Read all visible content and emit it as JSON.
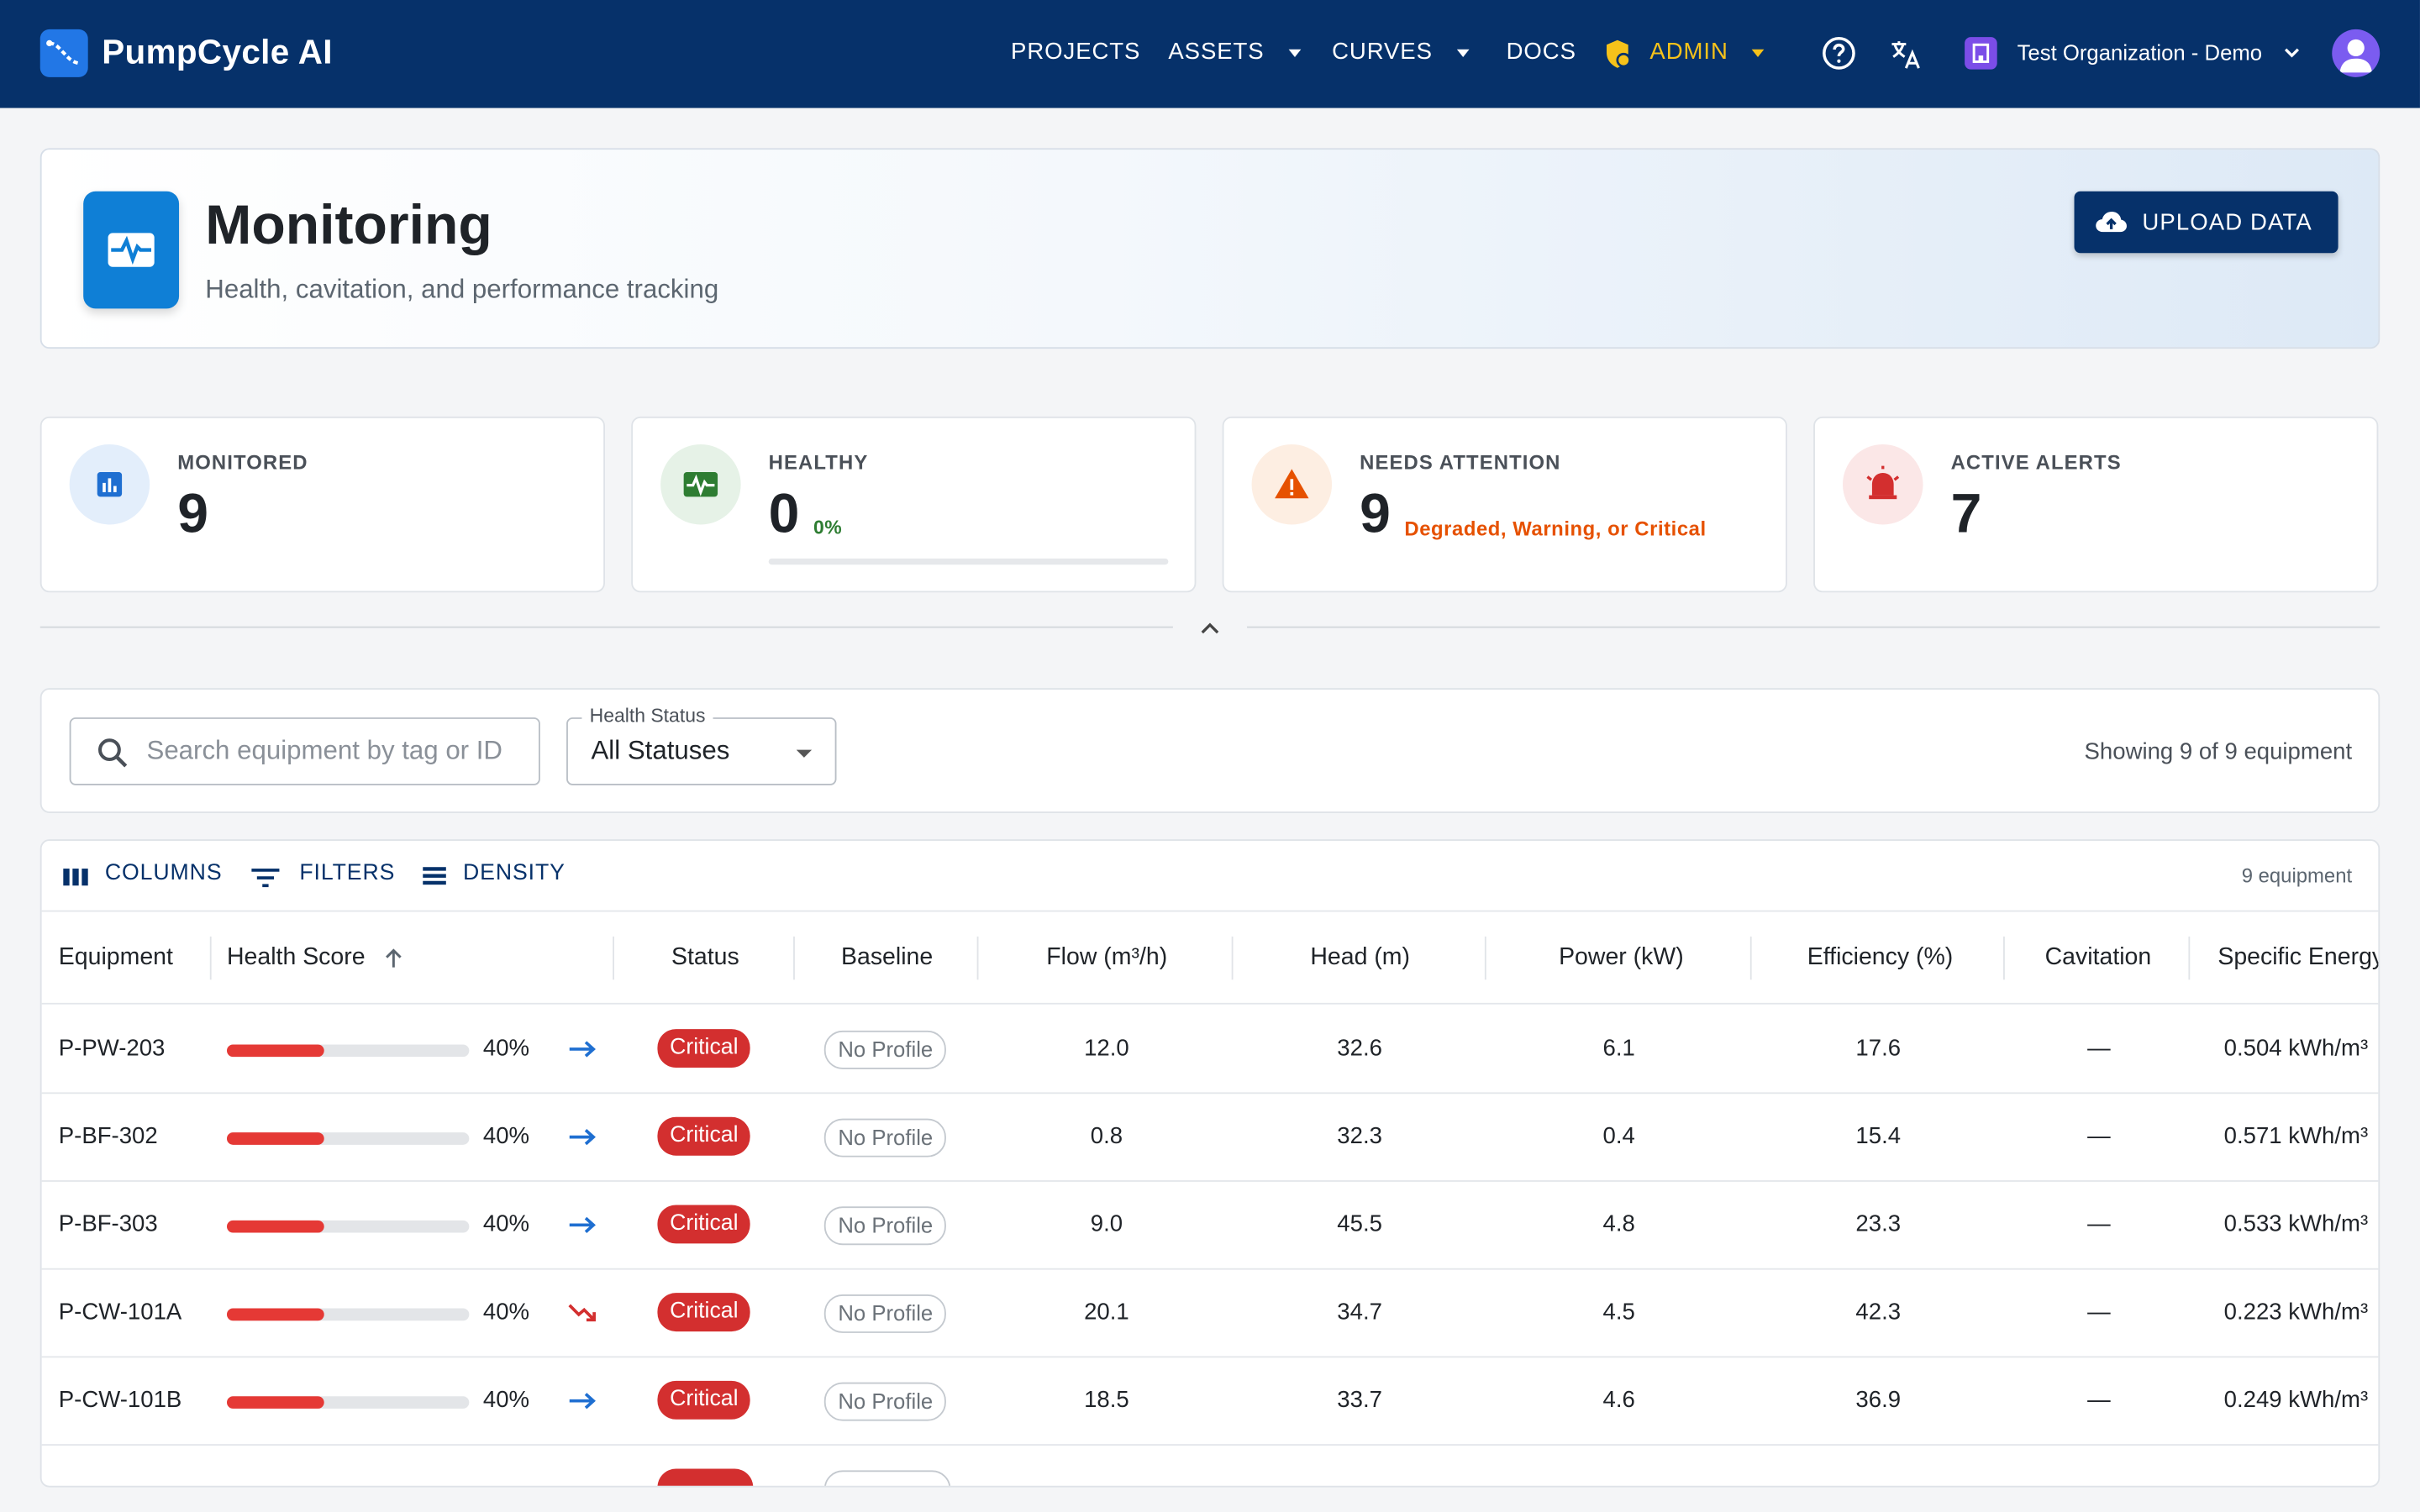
{
  "app": {
    "title": "PumpCycle AI"
  },
  "nav": {
    "projects": "PROJECTS",
    "assets": "ASSETS",
    "curves": "CURVES",
    "docs": "DOCS",
    "admin": "ADMIN",
    "organization": "Test Organization - Demo"
  },
  "header": {
    "title": "Monitoring",
    "subtitle": "Health, cavitation, and performance tracking",
    "upload_label": "UPLOAD DATA"
  },
  "stats": {
    "monitored": {
      "label": "MONITORED",
      "value": "9"
    },
    "healthy": {
      "label": "HEALTHY",
      "value": "0",
      "percent": "0%",
      "progress": 0
    },
    "attention": {
      "label": "NEEDS ATTENTION",
      "value": "9",
      "note": "Degraded, Warning, or Critical"
    },
    "alerts": {
      "label": "ACTIVE ALERTS",
      "value": "7"
    }
  },
  "filters": {
    "search_placeholder": "Search equipment by tag or ID",
    "status_label": "Health Status",
    "status_value": "All Statuses",
    "showing": "Showing 9 of 9 equipment"
  },
  "toolbar": {
    "columns": "COLUMNS",
    "filters": "FILTERS",
    "density": "DENSITY",
    "count": "9 equipment"
  },
  "table": {
    "columns": [
      "Equipment",
      "Health Score",
      "Status",
      "Baseline",
      "Flow (m³/h)",
      "Head (m)",
      "Power (kW)",
      "Efficiency (%)",
      "Cavitation",
      "Specific Energy"
    ],
    "rows": [
      {
        "equipment": "P-PW-203",
        "health": "40%",
        "health_value": 0.4,
        "trend": "flat",
        "status": "Critical",
        "baseline": "No Profile",
        "flow": "12.0",
        "head": "32.6",
        "power": "6.1",
        "efficiency": "17.6",
        "cavitation": "—",
        "energy": "0.504 kWh/m³"
      },
      {
        "equipment": "P-BF-302",
        "health": "40%",
        "health_value": 0.4,
        "trend": "flat",
        "status": "Critical",
        "baseline": "No Profile",
        "flow": "0.8",
        "head": "32.3",
        "power": "0.4",
        "efficiency": "15.4",
        "cavitation": "—",
        "energy": "0.571 kWh/m³"
      },
      {
        "equipment": "P-BF-303",
        "health": "40%",
        "health_value": 0.4,
        "trend": "flat",
        "status": "Critical",
        "baseline": "No Profile",
        "flow": "9.0",
        "head": "45.5",
        "power": "4.8",
        "efficiency": "23.3",
        "cavitation": "—",
        "energy": "0.533 kWh/m³"
      },
      {
        "equipment": "P-CW-101A",
        "health": "40%",
        "health_value": 0.4,
        "trend": "down",
        "status": "Critical",
        "baseline": "No Profile",
        "flow": "20.1",
        "head": "34.7",
        "power": "4.5",
        "efficiency": "42.3",
        "cavitation": "—",
        "energy": "0.223 kWh/m³"
      },
      {
        "equipment": "P-CW-101B",
        "health": "40%",
        "health_value": 0.4,
        "trend": "flat",
        "status": "Critical",
        "baseline": "No Profile",
        "flow": "18.5",
        "head": "33.7",
        "power": "4.6",
        "efficiency": "36.9",
        "cavitation": "—",
        "energy": "0.249 kWh/m³"
      }
    ]
  },
  "colors": {
    "topbar": "#06316a",
    "accent": "#0f7fd6",
    "critical": "#d32f2f",
    "healthy": "#2e7d32",
    "warning": "#e65100",
    "admin": "#f6c21a"
  }
}
